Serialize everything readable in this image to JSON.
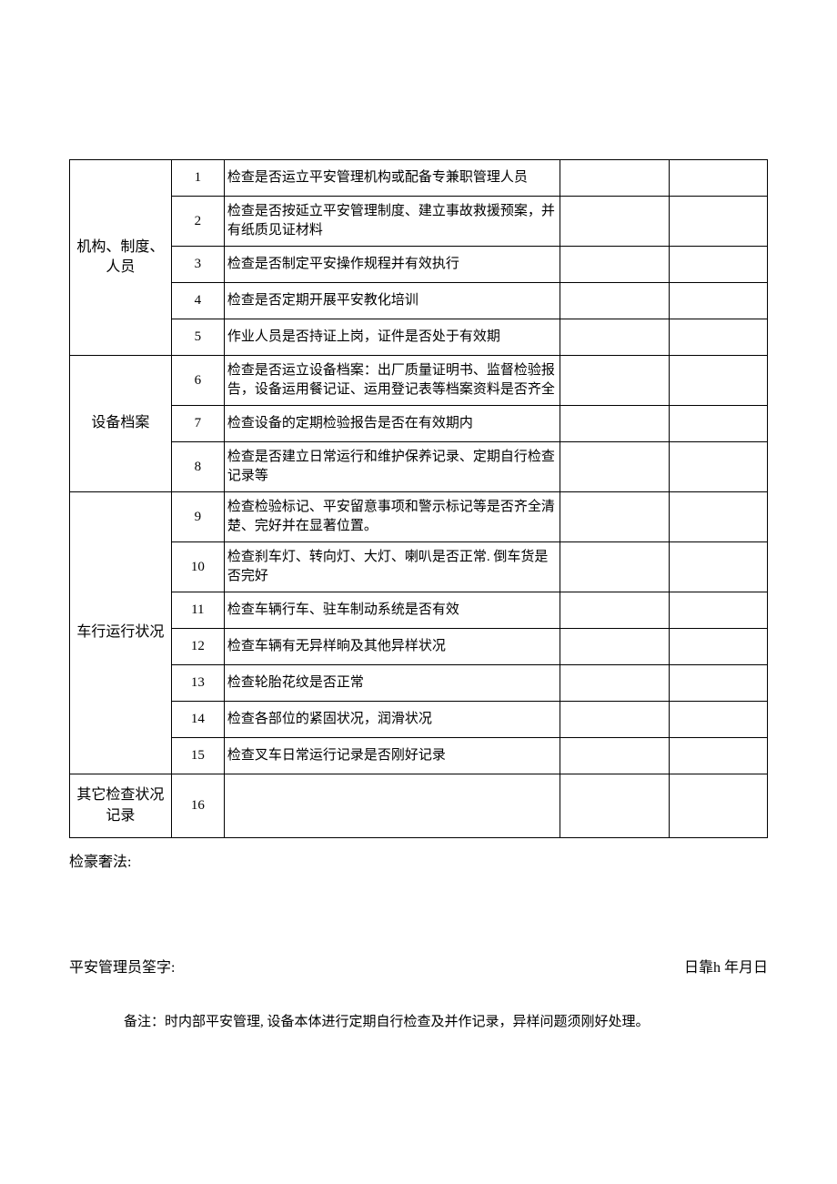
{
  "groups": [
    {
      "category": "机构、制度、人员",
      "rows": [
        {
          "num": "1",
          "desc": "检查是否运立平安管理机构或配备专兼职管理人员"
        },
        {
          "num": "2",
          "desc": "检查是否按延立平安管理制度、建立事故救援预案，并有纸质见证材料"
        },
        {
          "num": "3",
          "desc": "检查是否制定平安操作规程并有效执行"
        },
        {
          "num": "4",
          "desc": "检查是否定期开展平安教化培训"
        },
        {
          "num": "5",
          "desc": "作业人员是否持证上岗，证件是否处于有效期"
        }
      ]
    },
    {
      "category": "设备档案",
      "rows": [
        {
          "num": "6",
          "desc": "检查是否运立设备档案：出厂质量证明书、监督检验报告，设备运用餐记证、运用登记表等档案资料是否齐全"
        },
        {
          "num": "7",
          "desc": "检查设备的定期检验报告是否在有效期内"
        },
        {
          "num": "8",
          "desc": "检查是否建立日常运行和维护保养记录、定期自行检查记录等"
        }
      ]
    },
    {
      "category": "车行运行状况",
      "rows": [
        {
          "num": "9",
          "desc": "检查检验标记、平安留意事项和警示标记等是否齐全清楚、完好并在显著位置。"
        },
        {
          "num": "10",
          "desc": "检查刹车灯、转向灯、大灯、喇叭是否正常. 倒车货是否完好"
        },
        {
          "num": "11",
          "desc": "检查车辆行车、驻车制动系统是否有效"
        },
        {
          "num": "12",
          "desc": "检查车辆有无异样晌及其他异样状况"
        },
        {
          "num": "13",
          "desc": "检查轮胎花纹是否正常"
        },
        {
          "num": "14",
          "desc": "检查各部位的紧固状况，润滑状况"
        },
        {
          "num": "15",
          "desc": "检查叉车日常运行记录是否刚好记录"
        }
      ]
    },
    {
      "category": "其它检查状况记录",
      "rows": [
        {
          "num": "16",
          "desc": ""
        }
      ]
    }
  ],
  "labels": {
    "inspect_method": "检豪奢法:",
    "manager_sign": "平安管理员筌字:",
    "date_label": "日靠h   年月日",
    "remark": "备注：时内部平安管理, 设备本体进行定期自行检查及并作记录，异样问题须刚好处理。"
  },
  "style": {
    "background_color": "#ffffff",
    "text_color": "#000000",
    "border_color": "#000000"
  }
}
